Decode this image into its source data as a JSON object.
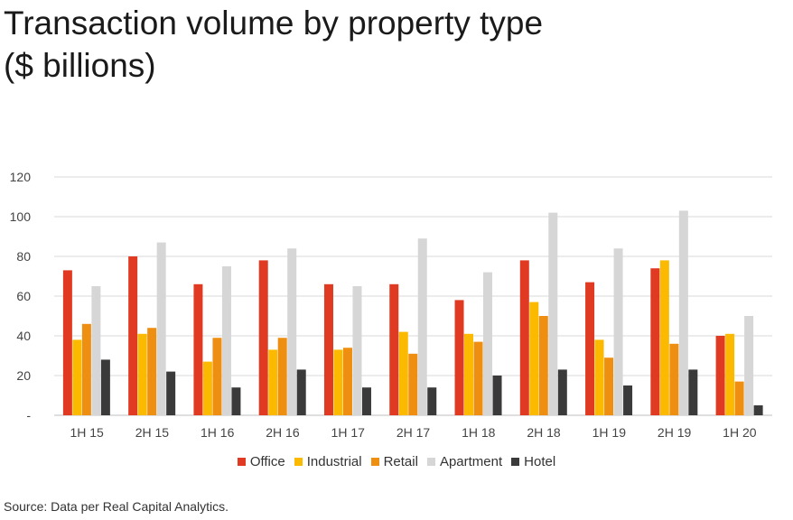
{
  "chart_data": {
    "type": "bar",
    "title": "Transaction volume by property type ($ billions)",
    "categories": [
      "1H 15",
      "2H 15",
      "1H 16",
      "2H 16",
      "1H 17",
      "2H 17",
      "1H 18",
      "2H 18",
      "1H 19",
      "2H 19",
      "1H 20"
    ],
    "series": [
      {
        "name": "Office",
        "color": "#e03a22",
        "values": [
          73,
          80,
          66,
          78,
          66,
          66,
          58,
          78,
          67,
          74,
          40
        ]
      },
      {
        "name": "Industrial",
        "color": "#fbb900",
        "values": [
          38,
          41,
          27,
          33,
          33,
          42,
          41,
          57,
          38,
          78,
          41
        ]
      },
      {
        "name": "Retail",
        "color": "#ef8f12",
        "values": [
          46,
          44,
          39,
          39,
          34,
          31,
          37,
          50,
          29,
          36,
          17
        ]
      },
      {
        "name": "Apartment",
        "color": "#d6d6d6",
        "values": [
          65,
          87,
          75,
          84,
          65,
          89,
          72,
          102,
          84,
          103,
          50
        ]
      },
      {
        "name": "Hotel",
        "color": "#3a3a3a",
        "values": [
          28,
          22,
          14,
          23,
          14,
          14,
          20,
          23,
          15,
          23,
          5
        ]
      }
    ],
    "ylim": [
      0,
      120
    ],
    "yticks": [
      "-",
      "20",
      "40",
      "60",
      "80",
      "100",
      "120"
    ],
    "ytick_values": [
      0,
      20,
      40,
      60,
      80,
      100,
      120
    ],
    "xlabel": "",
    "ylabel": "",
    "grid": true,
    "legend_position": "bottom"
  },
  "source_note": "Source: Data per Real Capital Analytics."
}
